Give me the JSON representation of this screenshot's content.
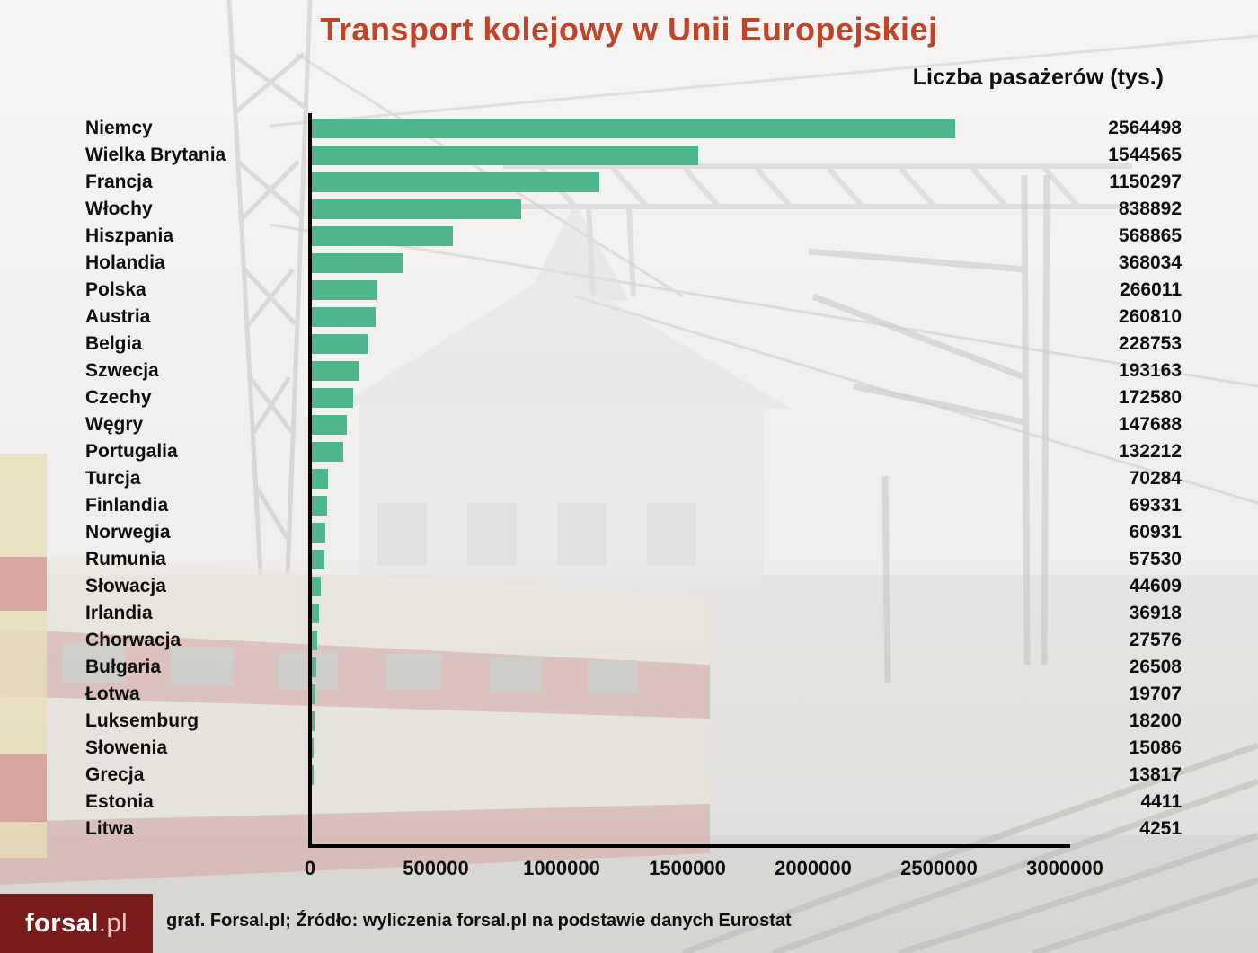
{
  "title": "Transport kolejowy w Unii Europejskiej",
  "subtitle": "Liczba pasażerów (tys.)",
  "footer": {
    "logo_main": "f​orsal",
    "logo_suffix": ".pl",
    "caption": "graf. Forsal.pl; Źródło: wyliczenia forsal.pl na podstawie danych Eurostat"
  },
  "colors": {
    "bar": "#4fb68c",
    "title": "#c0442a",
    "logo_bg": "#7a1b1b",
    "axis": "#000000",
    "text": "#0e0e0e"
  },
  "chart_data": {
    "type": "bar",
    "orientation": "horizontal",
    "title": "Transport kolejowy w Unii Europejskiej",
    "subtitle": "Liczba pasażerów (tys.)",
    "xlabel": "",
    "ylabel": "",
    "xlim": [
      0,
      3000000
    ],
    "x_ticks": [
      0,
      500000,
      1000000,
      1500000,
      2000000,
      2500000,
      3000000
    ],
    "grid": false,
    "legend": false,
    "value_labels": "right",
    "categories": [
      "Niemcy",
      "Wielka Brytania",
      "Francja",
      "Włochy",
      "Hiszpania",
      "Holandia",
      "Polska",
      "Austria",
      "Belgia",
      "Szwecja",
      "Czechy",
      "Węgry",
      "Portugalia",
      "Turcja",
      "Finlandia",
      "Norwegia",
      "Rumunia",
      "Słowacja",
      "Irlandia",
      "Chorwacja",
      "Bułgaria",
      "Łotwa",
      "Luksemburg",
      "Słowenia",
      "Grecja",
      "Estonia",
      "Litwa"
    ],
    "values": [
      2564498,
      1544565,
      1150297,
      838892,
      568865,
      368034,
      266011,
      260810,
      228753,
      193163,
      172580,
      147688,
      132212,
      70284,
      69331,
      60931,
      57530,
      44609,
      36918,
      27576,
      26508,
      19707,
      18200,
      15086,
      13817,
      4411,
      4251
    ]
  }
}
